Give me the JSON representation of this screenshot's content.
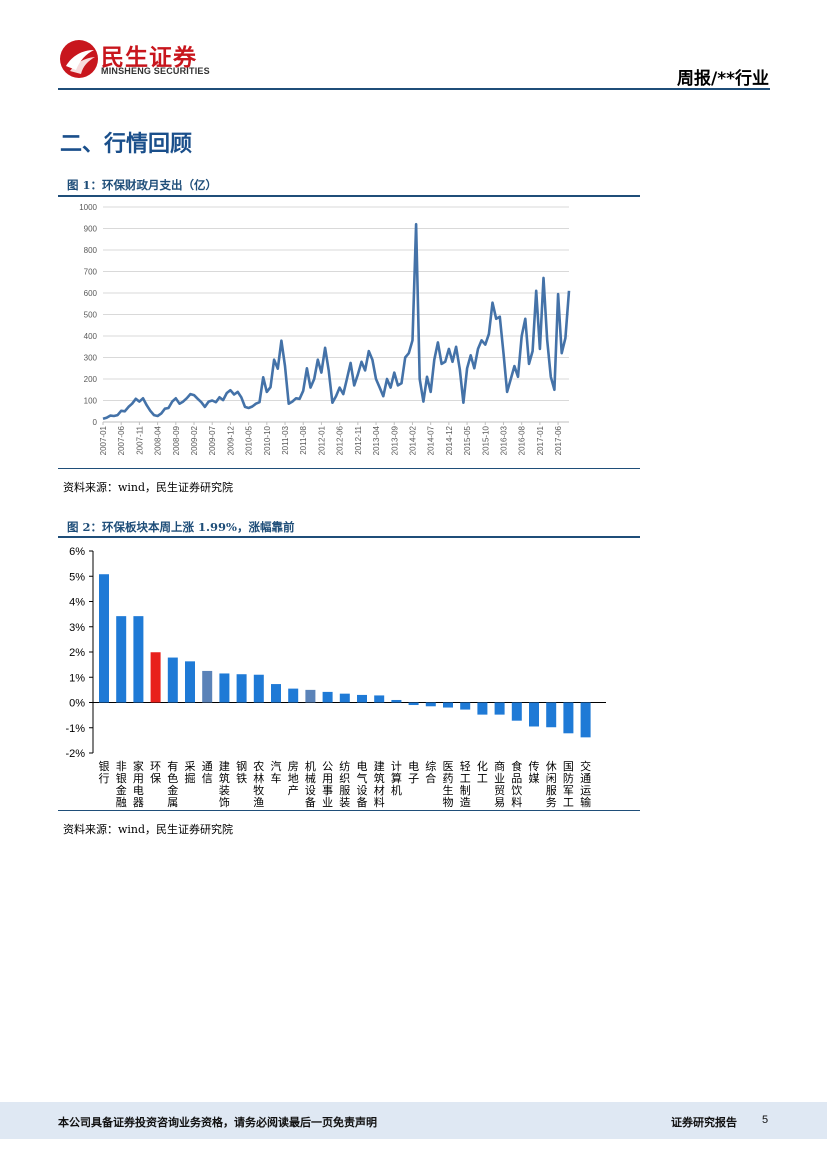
{
  "header": {
    "logo_name": "民生证券",
    "logo_en": "MINSHENG SECURITIES",
    "doc_type": "周报/**行业"
  },
  "section": {
    "title": "二、行情回顾"
  },
  "figure1": {
    "title": "图 1：环保财政月支出（亿）",
    "source": "资料来源：wind，民生证券研究院"
  },
  "figure2": {
    "title": "图 2：环保板块本周上涨 1.99%，涨幅靠前",
    "source": "资料来源：wind，民生证券研究院"
  },
  "footer": {
    "disclaimer": "本公司具备证券投资咨询业务资格，请务必阅读最后一页免责声明",
    "report_type": "证券研究报告",
    "page": "5"
  },
  "colors": {
    "brand_red": "#c8161d",
    "navy": "#1f4e79",
    "line_blue": "#4472a8",
    "bar_blue": "#1f7ad6",
    "bar_highlight": "#e8201c",
    "bar_muted": "#5b83b8",
    "footer_bg": "#dfe8f3"
  },
  "chart_data": [
    {
      "type": "line",
      "ylim": [
        0,
        1000
      ],
      "yticks": [
        0,
        100,
        200,
        300,
        400,
        500,
        600,
        700,
        800,
        900,
        1000
      ],
      "xtick_labels": [
        "2007-01",
        "2007-06",
        "2007-11",
        "2008-04",
        "2008-09",
        "2009-02",
        "2009-07",
        "2009-12",
        "2010-05",
        "2010-10",
        "2011-03",
        "2011-08",
        "2012-01",
        "2012-06",
        "2012-11",
        "2013-04",
        "2013-09",
        "2014-02",
        "2014-07",
        "2014-12",
        "2015-05",
        "2015-10",
        "2016-03",
        "2016-08",
        "2017-01",
        "2017-06"
      ],
      "grid": true,
      "series": [
        {
          "values": [
            15,
            20,
            30,
            28,
            32,
            52,
            50,
            70,
            85,
            108,
            95,
            110,
            78,
            52,
            32,
            28,
            40,
            62,
            65,
            95,
            110,
            85,
            95,
            110,
            130,
            125,
            108,
            92,
            70,
            95,
            100,
            92,
            115,
            102,
            135,
            148,
            128,
            140,
            115,
            70,
            65,
            72,
            85,
            92,
            208,
            140,
            162,
            290,
            248,
            378,
            260,
            85,
            95,
            110,
            108,
            145,
            250,
            160,
            200,
            290,
            230,
            345,
            240,
            90,
            120,
            160,
            130,
            200,
            275,
            170,
            220,
            280,
            240,
            330,
            290,
            200,
            160,
            120,
            200,
            160,
            230,
            170,
            180,
            300,
            320,
            380,
            920,
            200,
            95,
            210,
            140,
            290,
            370,
            270,
            280,
            340,
            280,
            350,
            245,
            90,
            250,
            310,
            250,
            340,
            380,
            360,
            410,
            555,
            480,
            490,
            320,
            140,
            200,
            260,
            210,
            400,
            480,
            270,
            330,
            610,
            340,
            670,
            380,
            210,
            150,
            595,
            320,
            390,
            610
          ]
        }
      ]
    },
    {
      "type": "bar",
      "ylim": [
        -2,
        6
      ],
      "yticks": [
        "6%",
        "5%",
        "4%",
        "3%",
        "2%",
        "1%",
        "0%",
        "-1%",
        "-2%"
      ],
      "grid": false,
      "categories": [
        "银行",
        "非银金融",
        "家用电器",
        "环保",
        "有色金属",
        "采掘",
        "通信",
        "建筑装饰",
        "钢铁",
        "农林牧渔",
        "汽车",
        "房地产",
        "机械设备",
        "公用事业",
        "纺织服装",
        "电气设备",
        "建筑材料",
        "计算机",
        "电子",
        "综合",
        "医药生物",
        "轻工制造",
        "化工",
        "商业贸易",
        "食品饮料",
        "传媒",
        "休闲服务",
        "国防军工",
        "交通运输"
      ],
      "series": [
        {
          "values": [
            5.08,
            3.42,
            3.42,
            1.99,
            1.78,
            1.63,
            1.25,
            1.15,
            1.12,
            1.1,
            0.73,
            0.55,
            0.5,
            0.42,
            0.35,
            0.3,
            0.28,
            0.1,
            -0.1,
            -0.15,
            -0.2,
            -0.28,
            -0.48,
            -0.48,
            -0.72,
            -0.95,
            -0.98,
            -1.22,
            -1.38
          ],
          "highlight": {
            "环保": "#e8201c",
            "通信": "#5b83b8",
            "机械设备": "#5b83b8"
          }
        }
      ]
    }
  ]
}
